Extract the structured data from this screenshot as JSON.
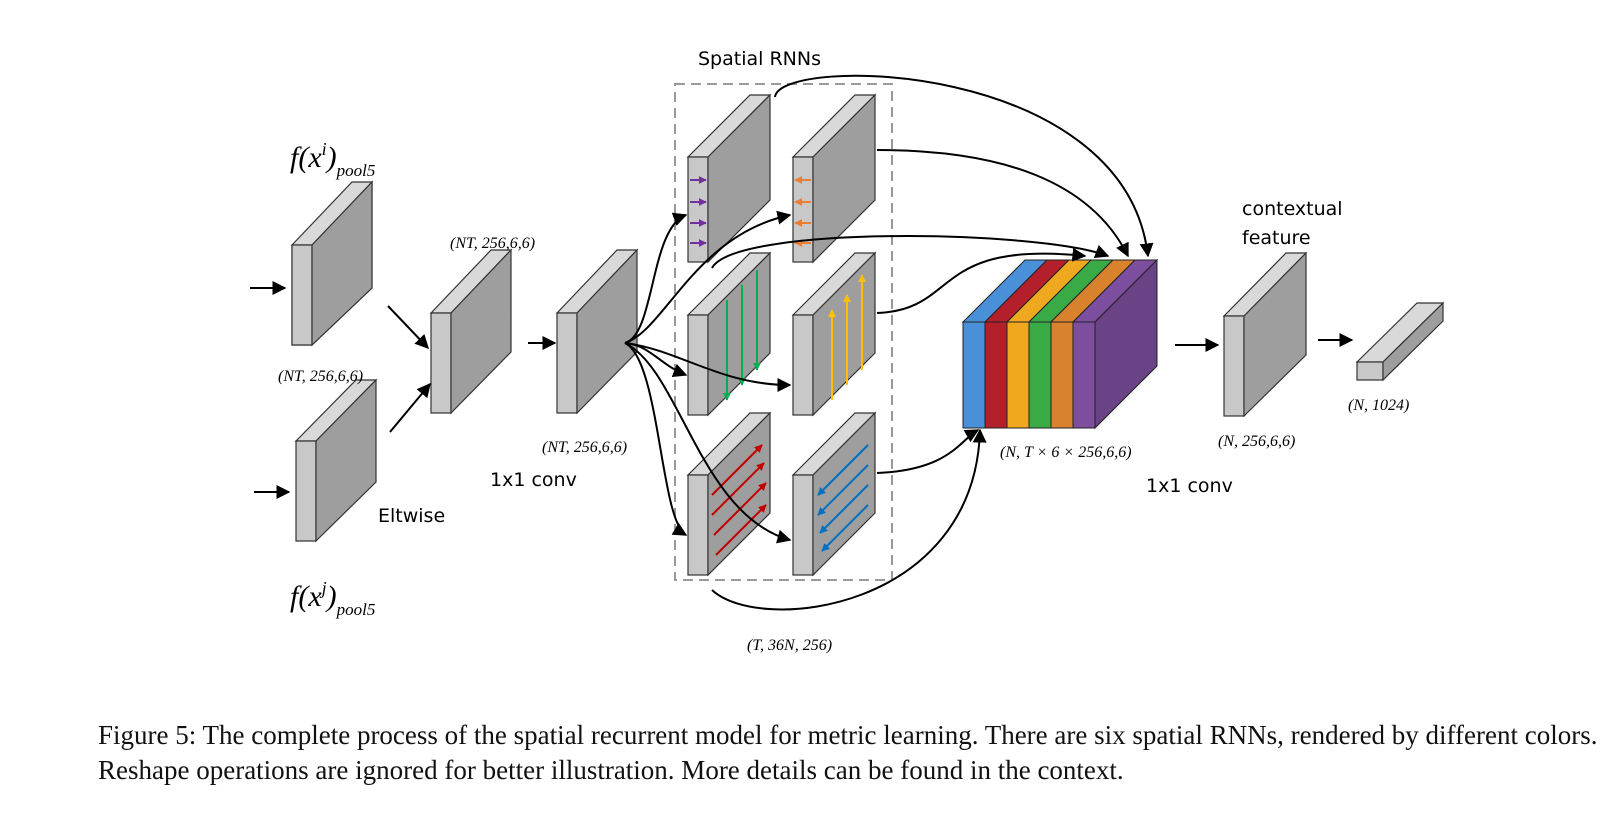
{
  "diagram": {
    "inputs": {
      "top_label": "f(x",
      "top_label_sup": "i",
      "top_label_close": ")",
      "top_label_sub": "pool5",
      "bottom_label": "f(x",
      "bottom_label_sup": "j",
      "bottom_label_close": ")",
      "bottom_label_sub": "pool5",
      "top_shape": "(NT, 256,6,6)"
    },
    "eltwise": {
      "label": "Eltwise",
      "shape": "(NT, 256,6,6)"
    },
    "conv1": {
      "label": "1x1 conv",
      "shape": "(NT, 256,6,6)"
    },
    "spatial_rnns": {
      "title": "Spatial RNNs",
      "shape": "(T, 36N, 256)",
      "directions": [
        {
          "name": "left-to-right",
          "color": "#7030a0"
        },
        {
          "name": "right-to-left",
          "color": "#ed7d31"
        },
        {
          "name": "top-to-bottom",
          "color": "#00b050"
        },
        {
          "name": "bottom-to-top",
          "color": "#ffc000"
        },
        {
          "name": "diagonal-up",
          "color": "#c00000"
        },
        {
          "name": "diagonal-down",
          "color": "#0070c0"
        }
      ]
    },
    "concat": {
      "shape": "(N, T × 6 × 256,6,6)",
      "slice_colors": [
        "#4a90d9",
        "#b3202b",
        "#f0a81e",
        "#3aaa47",
        "#d8822e",
        "#7d4e9e"
      ]
    },
    "conv2": {
      "label": "1x1 conv",
      "feature_label_1": "contextual",
      "feature_label_2": "feature",
      "shape": "(N, 256,6,6)"
    },
    "output": {
      "shape": "(N, 1024)"
    }
  },
  "caption": "Figure 5: The complete process of the spatial recurrent model for metric learning. There are six spatial RNNs, rendered by different colors. Reshape operations are ignored for better illustration. More details can be found in the context."
}
